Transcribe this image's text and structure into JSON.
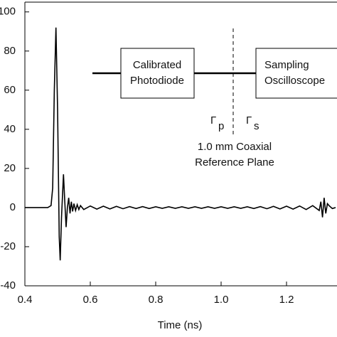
{
  "chart_data": {
    "type": "line",
    "xlabel": "Time (ns)",
    "xlim": [
      0.4,
      1.35
    ],
    "ylim": [
      -40,
      105
    ],
    "xticks": [
      0.4,
      0.6,
      0.8,
      {
        "value": 1,
        "label": "1.0"
      },
      1.2
    ],
    "yticks": [
      -40,
      -20,
      0,
      20,
      40,
      60,
      80,
      100
    ],
    "series": [
      {
        "color": "#000000",
        "x": [
          0.4,
          0.47,
          0.48,
          0.485,
          0.49,
          0.495,
          0.5,
          0.505,
          0.508,
          0.512,
          0.518,
          0.522,
          0.526,
          0.53,
          0.534,
          0.538,
          0.542,
          0.546,
          0.55,
          0.555,
          0.56,
          0.565,
          0.57,
          0.58,
          0.6,
          0.62,
          0.64,
          0.66,
          0.68,
          0.7,
          0.72,
          0.74,
          0.76,
          0.78,
          0.8,
          0.82,
          0.84,
          0.86,
          0.88,
          0.9,
          0.92,
          0.94,
          0.96,
          0.98,
          1.0,
          1.02,
          1.04,
          1.06,
          1.08,
          1.1,
          1.12,
          1.14,
          1.16,
          1.18,
          1.2,
          1.22,
          1.24,
          1.26,
          1.28,
          1.3,
          1.305,
          1.31,
          1.315,
          1.32,
          1.325,
          1.33,
          1.34,
          1.35
        ],
        "values": [
          0,
          0,
          1,
          10,
          60,
          92,
          50,
          -15,
          -27,
          -5,
          17,
          3,
          -10,
          0,
          5,
          -3,
          3,
          -2,
          2,
          -1.5,
          1.5,
          -1,
          1,
          -1,
          0.8,
          -0.8,
          0.7,
          -0.7,
          0.6,
          -0.6,
          0.5,
          -0.5,
          0.5,
          -0.5,
          0.4,
          -0.4,
          0.4,
          -0.4,
          0.4,
          -0.4,
          0.4,
          -0.4,
          0.4,
          -0.4,
          0.4,
          -0.4,
          0.4,
          -0.4,
          0.4,
          -0.5,
          0.5,
          -0.6,
          0.6,
          -0.7,
          0.7,
          -0.8,
          0.8,
          -1,
          1,
          -1.5,
          3,
          -5,
          5,
          -3,
          2,
          1,
          -0.5,
          0
        ]
      }
    ],
    "diagram": {
      "left_box": [
        "Calibrated",
        "Photodiode"
      ],
      "right_box": [
        "Sampling",
        "Oscilloscope"
      ],
      "gamma_left": {
        "symbol": "Γ",
        "sub": "p"
      },
      "gamma_right": {
        "symbol": "Γ",
        "sub": "s"
      },
      "plane_label": [
        "1.0 mm Coaxial",
        "Reference Plane"
      ]
    }
  }
}
